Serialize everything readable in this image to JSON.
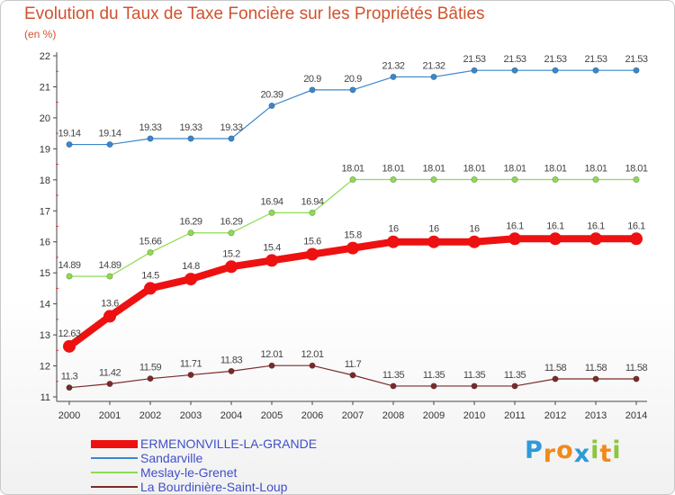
{
  "header": {
    "title": "Evolution du Taux de Taxe Foncière sur les Propriétés Bâties",
    "unit": "(en %)"
  },
  "logo": {
    "text": "Proxiti",
    "letters": [
      {
        "ch": "P",
        "color": "#2e9ad8"
      },
      {
        "ch": "r",
        "color": "#f08a1c"
      },
      {
        "ch": "o",
        "color": "#f08a1c"
      },
      {
        "ch": "x",
        "color": "#2e9ad8"
      },
      {
        "ch": "i",
        "color": "#8cc63e"
      },
      {
        "ch": "t",
        "color": "#f08a1c"
      },
      {
        "ch": "i",
        "color": "#8cc63e"
      }
    ]
  },
  "chart_data": {
    "type": "line",
    "title": "Evolution du Taux de Taxe Foncière sur les Propriétés Bâties",
    "ylabel": "(en %)",
    "xlabel": "",
    "x": [
      "2000",
      "2001",
      "2002",
      "2003",
      "2004",
      "2005",
      "2006",
      "2007",
      "2008",
      "2009",
      "2010",
      "2011",
      "2012",
      "2013",
      "2014"
    ],
    "ylim": [
      11,
      22
    ],
    "yticks": [
      "11",
      "12",
      "13",
      "14",
      "15",
      "16",
      "17",
      "18",
      "19",
      "20",
      "21",
      "22"
    ],
    "grid": false,
    "legend": "bottom",
    "series": [
      {
        "name": "ERMENONVILLE-LA-GRANDE",
        "color": "#ee1111",
        "emphasis": true,
        "values": [
          12.63,
          13.6,
          14.5,
          14.8,
          15.2,
          15.4,
          15.6,
          15.8,
          16,
          16,
          16,
          16.1,
          16.1,
          16.1,
          16.1
        ],
        "labels": [
          "12.63",
          "13.6",
          "14.5",
          "14.8",
          "15.2",
          "15.4",
          "15.6",
          "15.8",
          "16",
          "16",
          "16",
          "16.1",
          "16.1",
          "16.1",
          "16.1"
        ]
      },
      {
        "name": "Sandarville",
        "color": "#3a87cc",
        "emphasis": false,
        "values": [
          19.14,
          19.14,
          19.33,
          19.33,
          19.33,
          20.39,
          20.9,
          20.9,
          21.32,
          21.32,
          21.53,
          21.53,
          21.53,
          21.53,
          21.53
        ],
        "labels": [
          "19.14",
          "19.14",
          "19.33",
          "19.33",
          "19.33",
          "20.39",
          "20.9",
          "20.9",
          "21.32",
          "21.32",
          "21.53",
          "21.53",
          "21.53",
          "21.53",
          "21.53"
        ]
      },
      {
        "name": "Meslay-le-Grenet",
        "color": "#8cdc50",
        "emphasis": false,
        "values": [
          14.89,
          14.89,
          15.66,
          16.29,
          16.29,
          16.94,
          16.94,
          18.01,
          18.01,
          18.01,
          18.01,
          18.01,
          18.01,
          18.01,
          18.01
        ],
        "labels": [
          "14.89",
          "14.89",
          "15.66",
          "16.29",
          "16.29",
          "16.94",
          "16.94",
          "18.01",
          "18.01",
          "18.01",
          "18.01",
          "18.01",
          "18.01",
          "18.01",
          "18.01"
        ]
      },
      {
        "name": "La Bourdinière-Saint-Loup",
        "color": "#7a2a2a",
        "emphasis": false,
        "values": [
          11.3,
          11.42,
          11.59,
          11.71,
          11.83,
          12.01,
          12.01,
          11.7,
          11.35,
          11.35,
          11.35,
          11.35,
          11.58,
          11.58,
          11.58
        ],
        "labels": [
          "11.3",
          "11.42",
          "11.59",
          "11.71",
          "11.83",
          "12.01",
          "12.01",
          "11.7",
          "11.35",
          "11.35",
          "11.35",
          "11.35",
          "11.58",
          "11.58",
          "11.58"
        ]
      }
    ]
  }
}
